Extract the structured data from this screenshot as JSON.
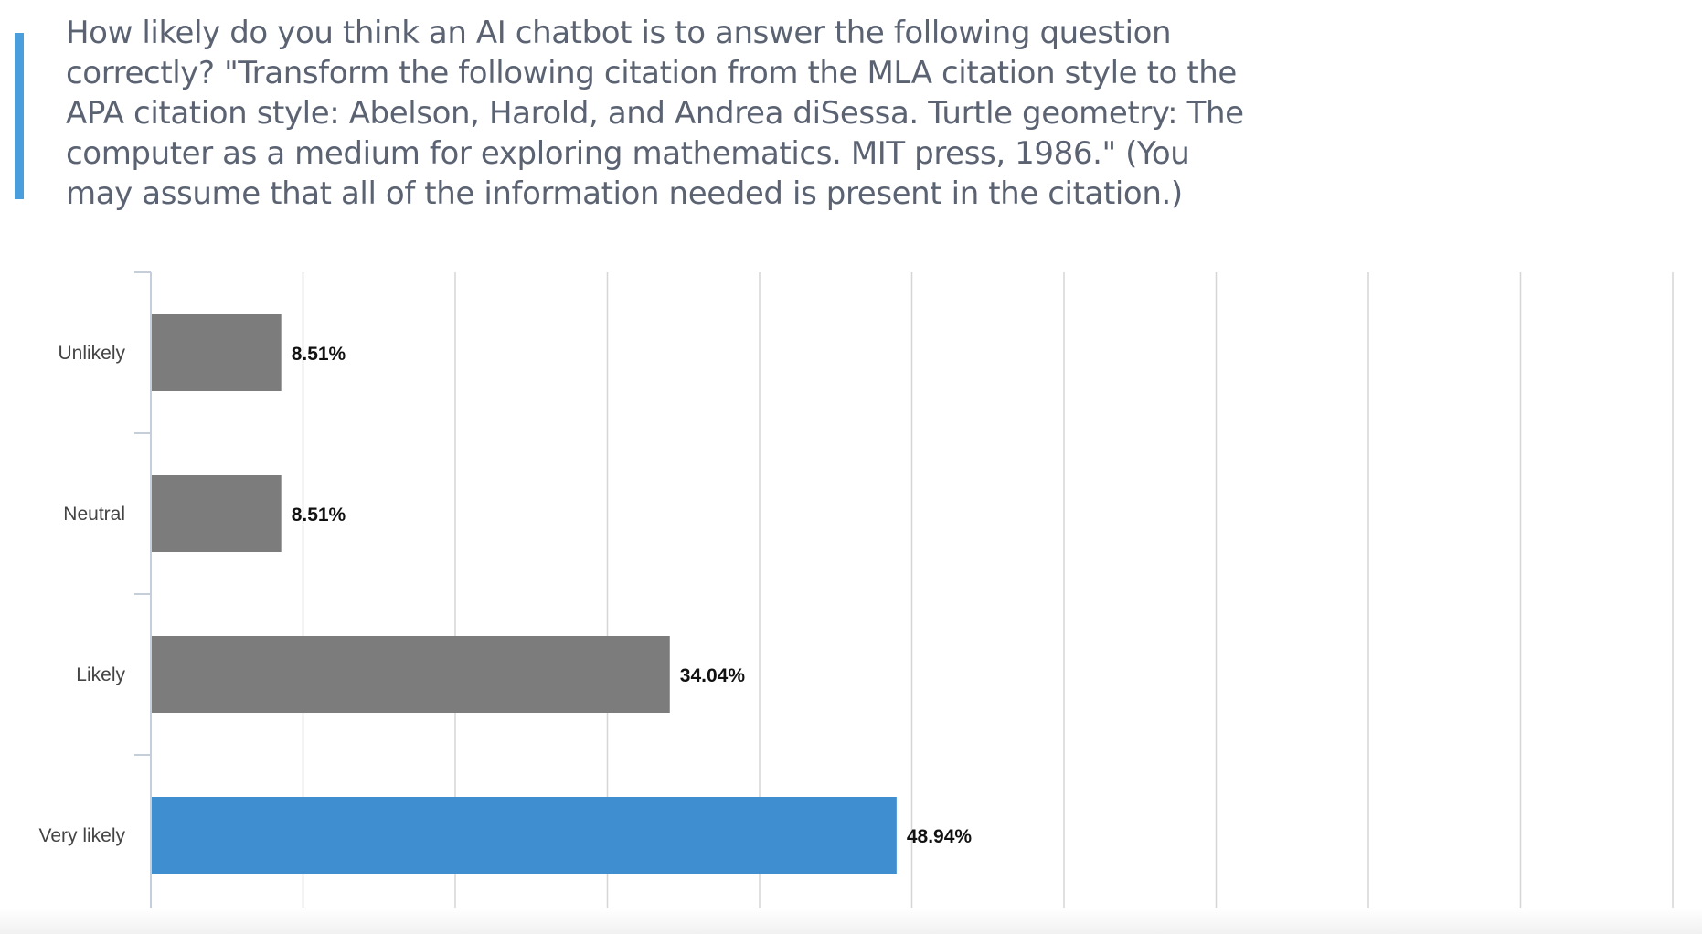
{
  "question": {
    "text": "How likely do you think an AI chatbot is to answer the following question correctly?  \"Transform the following citation from the MLA citation style to the APA citation style: Abelson, Harold, and Andrea diSessa. Turtle geometry: The computer as a medium for exploring mathematics. MIT press, 1986.\" (You may assume that all of the information needed is present in the citation.)",
    "accent_color": "#4a9edb"
  },
  "chart_data": {
    "type": "bar",
    "orientation": "horizontal",
    "categories": [
      "Unlikely",
      "Neutral",
      "Likely",
      "Very likely"
    ],
    "values": [
      8.51,
      8.51,
      34.04,
      48.94
    ],
    "value_labels": [
      "8.51%",
      "8.51%",
      "34.04%",
      "48.94%"
    ],
    "unit": "%",
    "xlim": [
      0,
      100
    ],
    "grid": true,
    "bar_color": "#7c7c7c",
    "highlight_color": "#3f8ecf",
    "highlight_index": 3,
    "title": "",
    "xlabel": "",
    "ylabel": ""
  }
}
